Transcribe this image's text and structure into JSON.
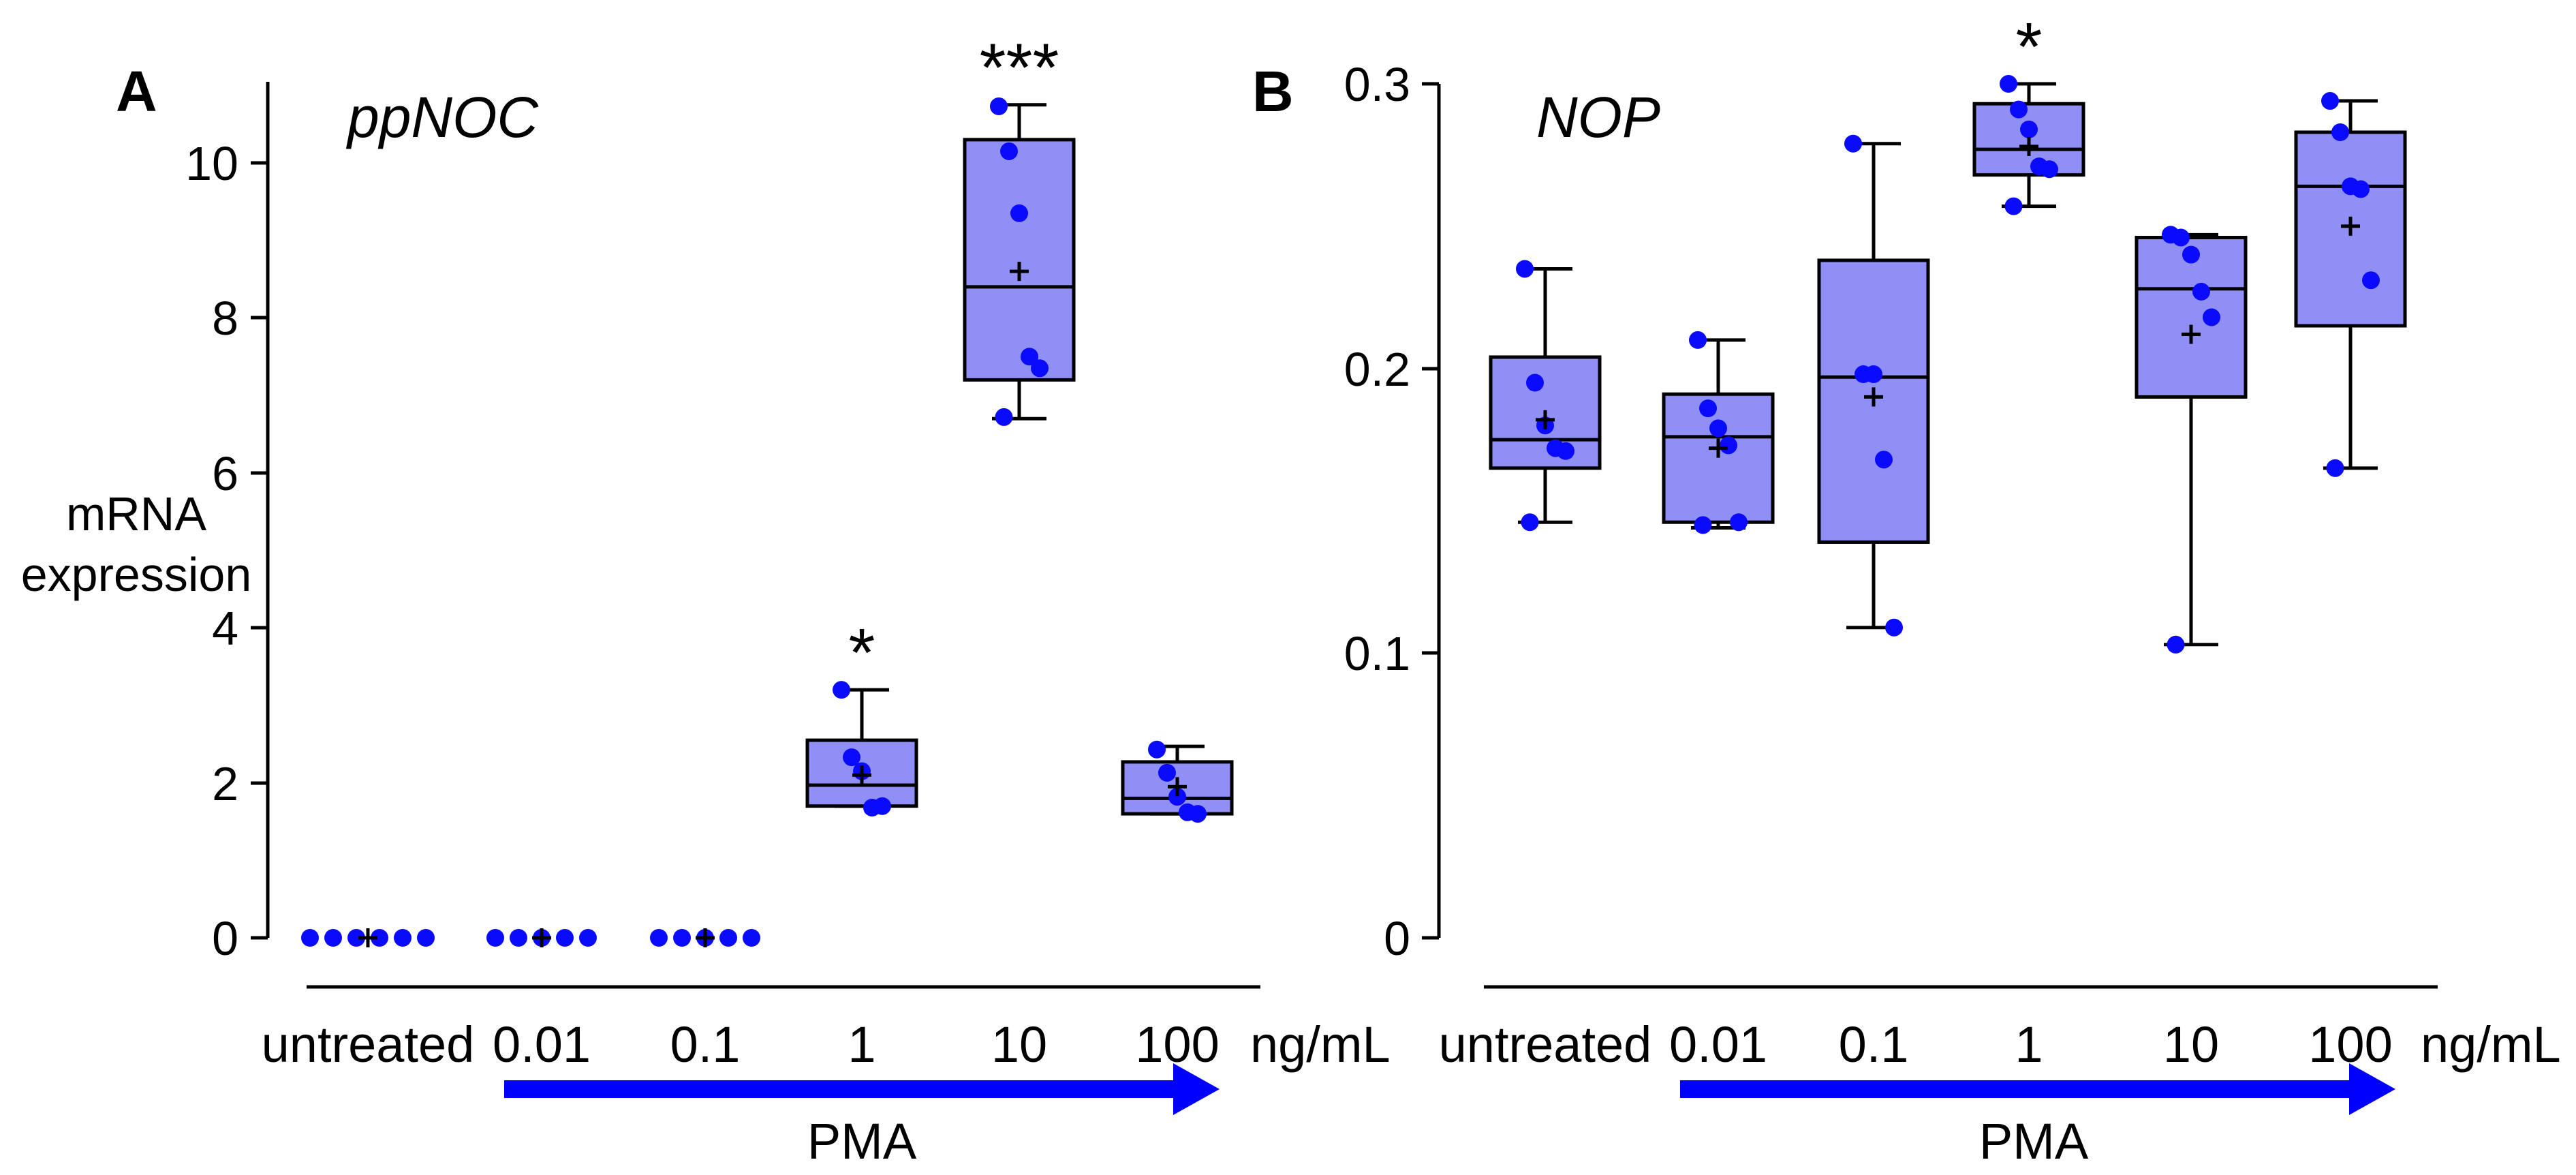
{
  "chart_data": [
    {
      "type": "box",
      "panel_label": "A",
      "title": "ppNOC",
      "ylabel_lines": [
        "mRNA",
        "expression"
      ],
      "ylim": [
        0,
        11
      ],
      "yticks": [
        0,
        2,
        4,
        6,
        8,
        10
      ],
      "ytick_labels": [
        "0",
        "2",
        "4",
        "6",
        "8",
        "10"
      ],
      "categories": [
        "untreated",
        "0.01",
        "0.1",
        "1",
        "10",
        "100"
      ],
      "unit_label": "ng/mL",
      "treatment_label": "PMA",
      "groups": [
        {
          "name": "untreated",
          "points": [
            0,
            0,
            0,
            0,
            0,
            0
          ],
          "mean": 0,
          "significance": ""
        },
        {
          "name": "0.01",
          "points": [
            0,
            0,
            0,
            0,
            0
          ],
          "mean": 0,
          "significance": ""
        },
        {
          "name": "0.1",
          "points": [
            0,
            0,
            0,
            0,
            0
          ],
          "mean": 0,
          "significance": ""
        },
        {
          "name": "1",
          "min": 1.7,
          "q1": 1.7,
          "median": 1.97,
          "q3": 2.55,
          "max": 3.2,
          "mean": 2.1,
          "points": [
            3.2,
            2.33,
            2.15,
            1.68,
            1.7
          ],
          "significance": "*"
        },
        {
          "name": "10",
          "min": 6.7,
          "q1": 7.2,
          "median": 8.4,
          "q3": 10.3,
          "max": 10.75,
          "mean": 8.6,
          "points": [
            10.73,
            10.15,
            9.35,
            7.5,
            7.35,
            6.72
          ],
          "significance": "***"
        },
        {
          "name": "100",
          "min": 1.6,
          "q1": 1.6,
          "median": 1.8,
          "q3": 2.27,
          "max": 2.47,
          "mean": 1.95,
          "points": [
            2.43,
            2.13,
            1.82,
            1.62,
            1.6
          ],
          "significance": ""
        }
      ]
    },
    {
      "type": "box",
      "panel_label": "B",
      "title": "NOP",
      "ylim": [
        0,
        0.3
      ],
      "yticks": [
        0,
        0.1,
        0.2,
        0.3
      ],
      "ytick_labels": [
        "0",
        "0.1",
        "0.2",
        "0.3"
      ],
      "categories": [
        "untreated",
        "0.01",
        "0.1",
        "1",
        "10",
        "100"
      ],
      "unit_label": "ng/mL",
      "treatment_label": "PMA",
      "groups": [
        {
          "name": "untreated",
          "min": 0.146,
          "q1": 0.165,
          "median": 0.175,
          "q3": 0.204,
          "max": 0.235,
          "mean": 0.182,
          "points": [
            0.235,
            0.195,
            0.18,
            0.172,
            0.171,
            0.146
          ],
          "significance": ""
        },
        {
          "name": "0.01",
          "min": 0.144,
          "q1": 0.146,
          "median": 0.176,
          "q3": 0.191,
          "max": 0.21,
          "mean": 0.172,
          "points": [
            0.21,
            0.186,
            0.179,
            0.173,
            0.146,
            0.145
          ],
          "significance": ""
        },
        {
          "name": "0.1",
          "min": 0.109,
          "q1": 0.139,
          "median": 0.197,
          "q3": 0.238,
          "max": 0.279,
          "mean": 0.19,
          "points": [
            0.279,
            0.198,
            0.198,
            0.168,
            0.109
          ],
          "significance": ""
        },
        {
          "name": "1",
          "min": 0.257,
          "q1": 0.268,
          "median": 0.277,
          "q3": 0.293,
          "max": 0.3,
          "mean": 0.278,
          "points": [
            0.3,
            0.291,
            0.284,
            0.271,
            0.27,
            0.257
          ],
          "significance": "*"
        },
        {
          "name": "10",
          "min": 0.103,
          "q1": 0.19,
          "median": 0.228,
          "q3": 0.246,
          "max": 0.247,
          "mean": 0.212,
          "points": [
            0.247,
            0.246,
            0.24,
            0.227,
            0.218,
            0.103
          ],
          "significance": ""
        },
        {
          "name": "100",
          "min": 0.165,
          "q1": 0.215,
          "median": 0.264,
          "q3": 0.283,
          "max": 0.294,
          "mean": 0.25,
          "points": [
            0.294,
            0.283,
            0.264,
            0.263,
            0.231,
            0.165
          ],
          "significance": ""
        }
      ]
    }
  ]
}
